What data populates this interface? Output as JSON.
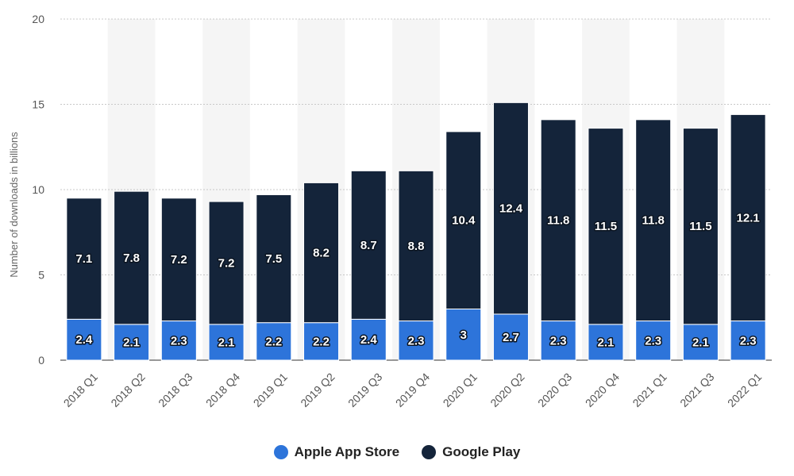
{
  "chart_data": {
    "type": "bar",
    "stacked": true,
    "ylabel": "Number of downloads in billions",
    "xlabel": "",
    "ylim": [
      0,
      20
    ],
    "yticks": [
      0,
      5,
      10,
      15,
      20
    ],
    "grid": true,
    "legend_position": "bottom",
    "categories": [
      "2018 Q1",
      "2018 Q2",
      "2018 Q3",
      "2018 Q4",
      "2019 Q1",
      "2019 Q2",
      "2019 Q3",
      "2019 Q4",
      "2020 Q1",
      "2020 Q2",
      "2020 Q3",
      "2020 Q4",
      "2021 Q1",
      "2021 Q3",
      "2022 Q1"
    ],
    "series": [
      {
        "name": "Apple App Store",
        "color": "#2d74da",
        "values": [
          2.4,
          2.1,
          2.3,
          2.1,
          2.2,
          2.2,
          2.4,
          2.3,
          3,
          2.7,
          2.3,
          2.1,
          2.3,
          2.1,
          2.3
        ]
      },
      {
        "name": "Google Play",
        "color": "#14243a",
        "values": [
          7.1,
          7.8,
          7.2,
          7.2,
          7.5,
          8.2,
          8.7,
          8.8,
          10.4,
          12.4,
          11.8,
          11.5,
          11.8,
          11.5,
          12.1
        ]
      }
    ]
  }
}
